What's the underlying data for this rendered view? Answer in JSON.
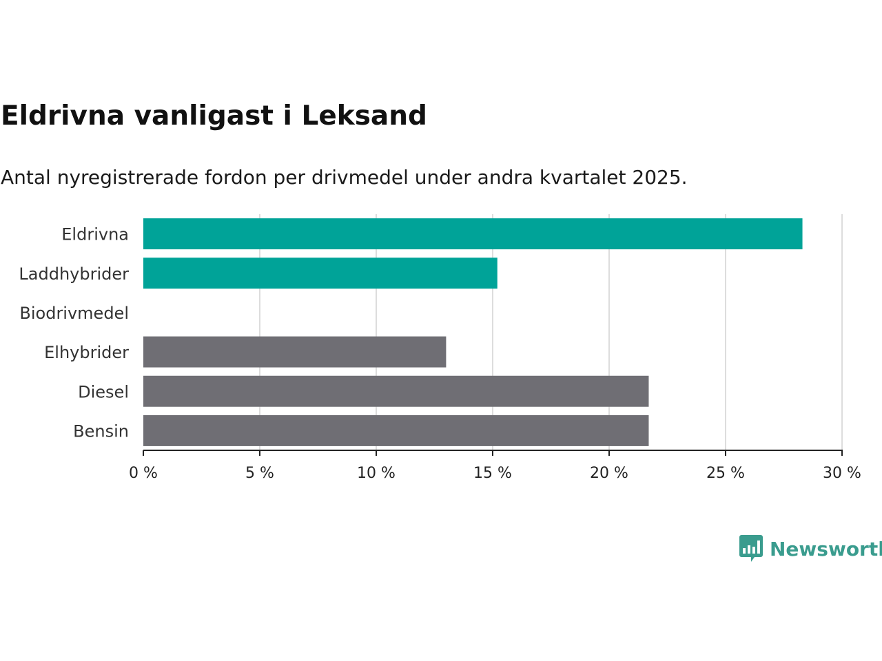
{
  "header": {
    "title": "Eldrivna vanligast i Leksand",
    "subtitle": "Antal nyregistrerade fordon per drivmedel under andra kvartalet 2025."
  },
  "branding": {
    "logo_text": "Newsworthy",
    "logo_icon": "bar-chart-speech-bubble-icon",
    "logo_color": "#3a9c8e"
  },
  "chart_data": {
    "type": "bar",
    "orientation": "horizontal",
    "categories": [
      "Eldrivna",
      "Laddhybrider",
      "Biodrivmedel",
      "Elhybrider",
      "Diesel",
      "Bensin"
    ],
    "values": [
      28.3,
      15.2,
      0,
      13.0,
      21.7,
      21.7
    ],
    "colors": [
      "#00a398",
      "#00a398",
      "#00a398",
      "#6f6e74",
      "#6f6e74",
      "#6f6e74"
    ],
    "xlim": [
      0,
      30
    ],
    "ticks": [
      0,
      5,
      10,
      15,
      20,
      25,
      30
    ],
    "tick_labels": [
      "0 %",
      "5 %",
      "10 %",
      "15 %",
      "20 %",
      "25 %",
      "30 %"
    ],
    "grid": true,
    "legend": "none"
  }
}
